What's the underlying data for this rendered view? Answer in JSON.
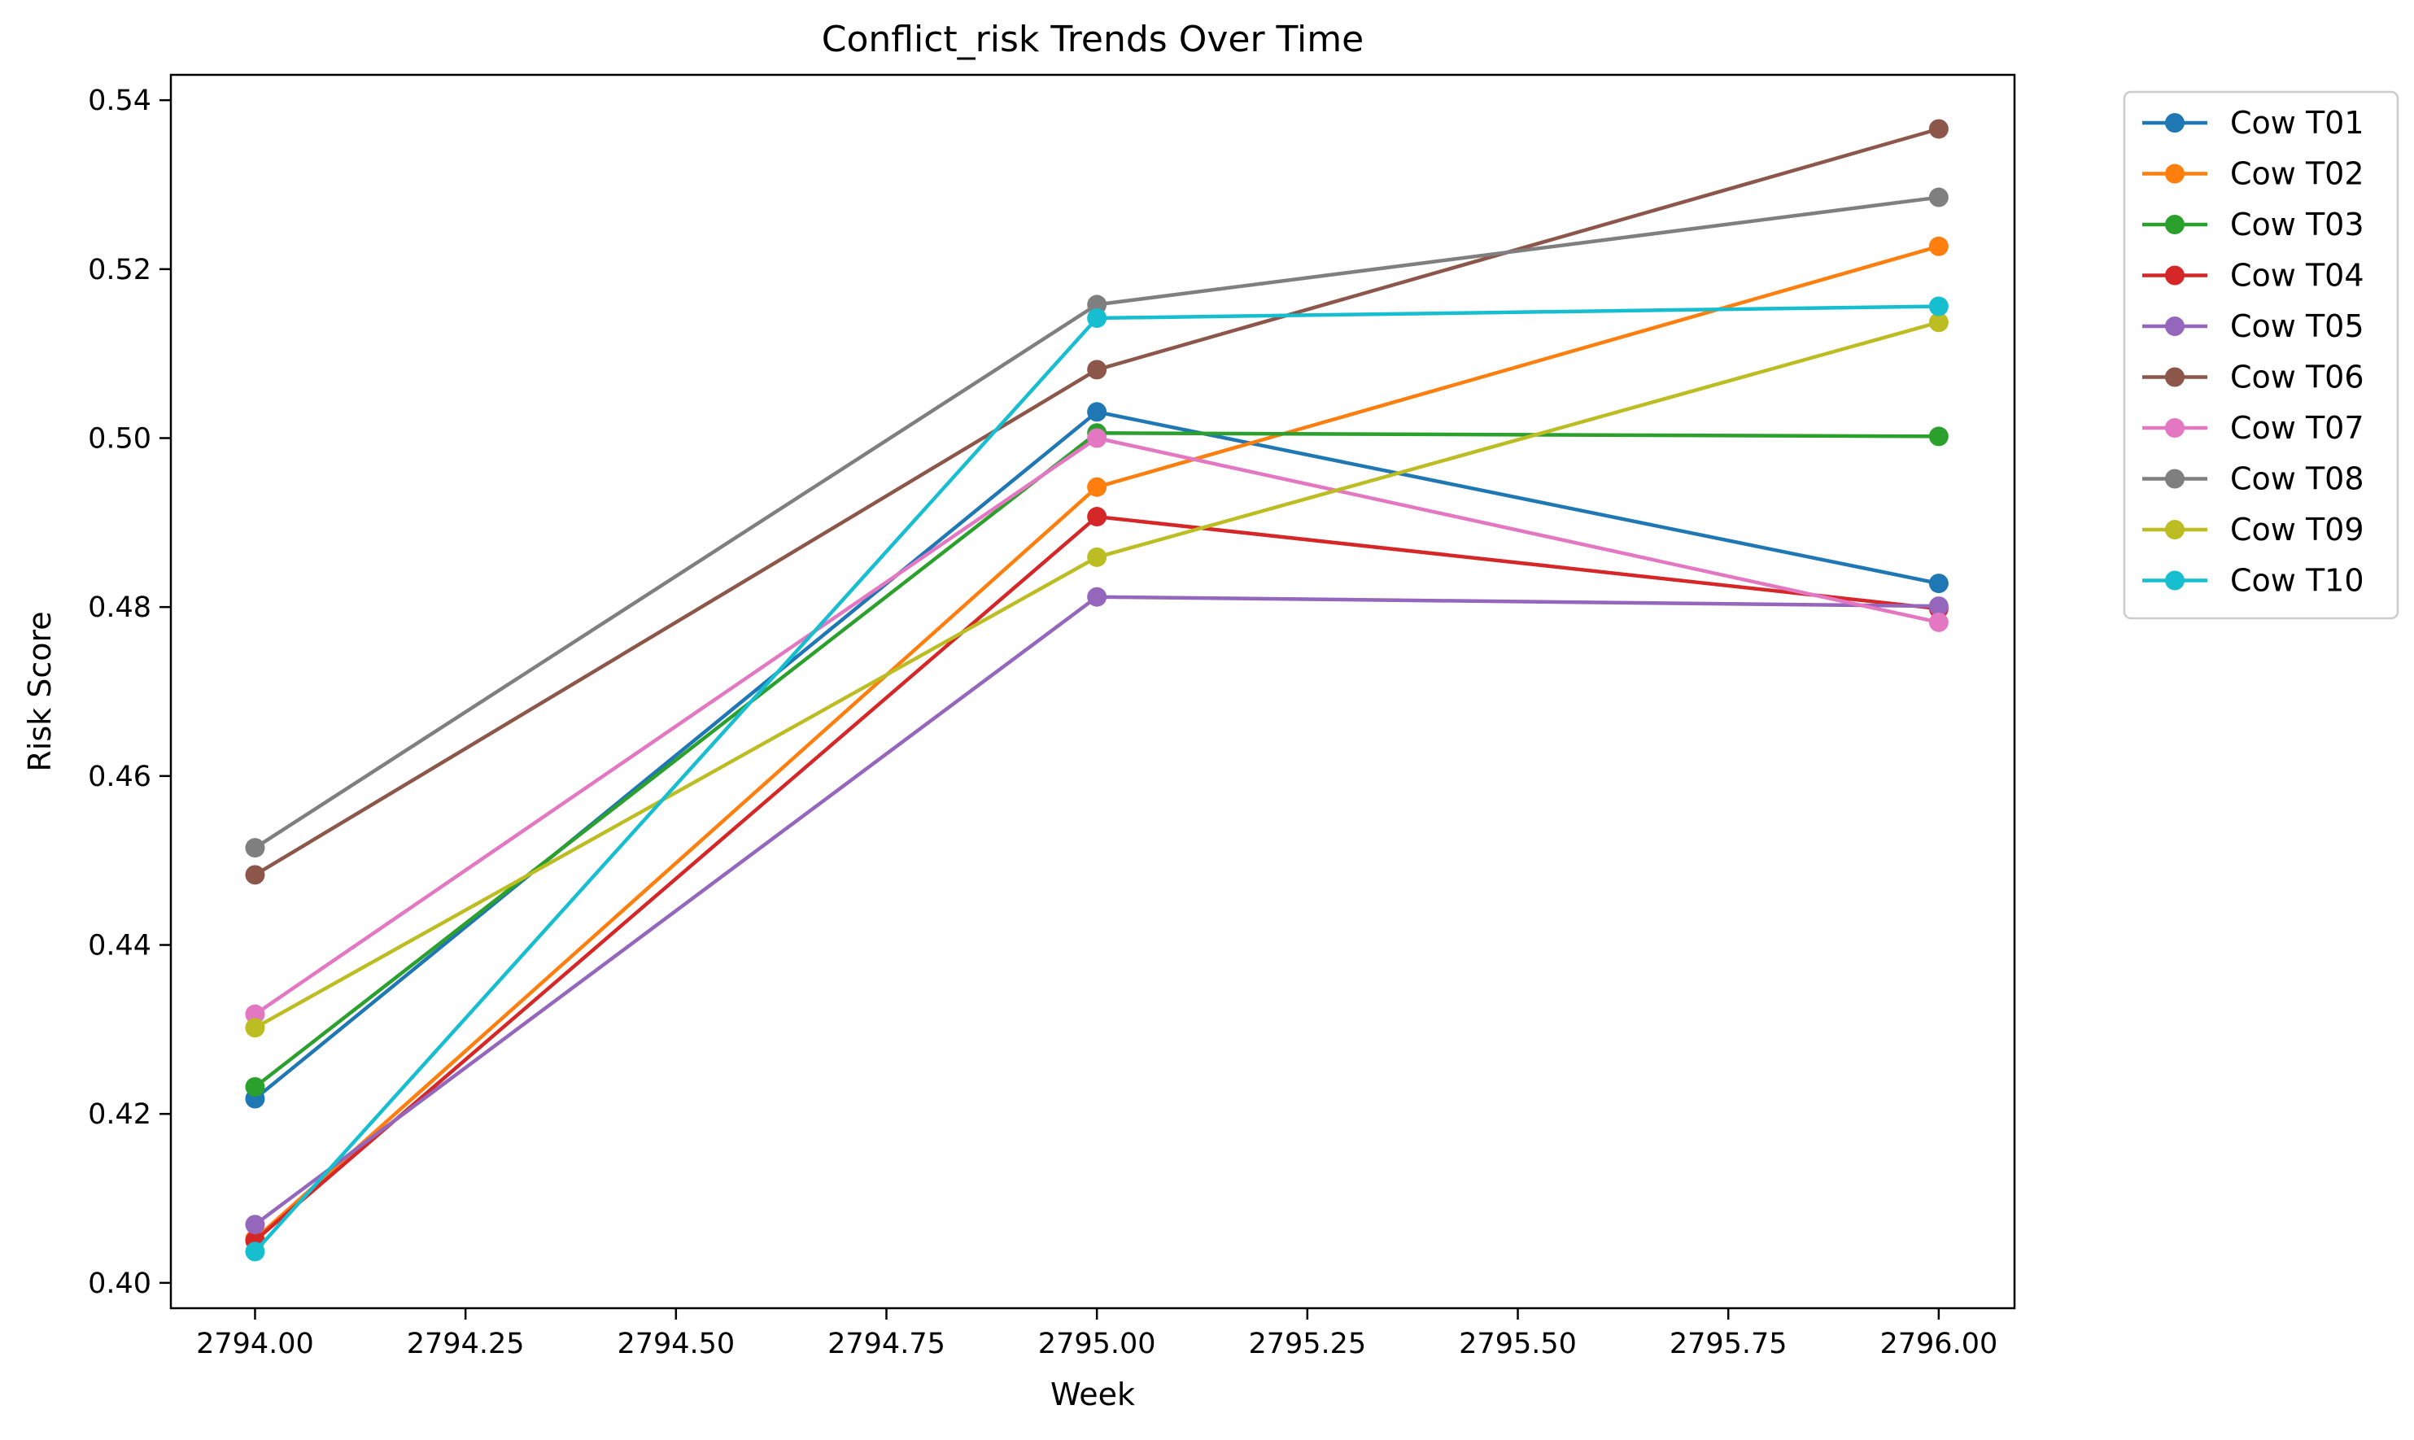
{
  "chart_data": {
    "type": "line",
    "title": "Conflict_risk Trends Over Time",
    "xlabel": "Week",
    "ylabel": "Risk Score",
    "xlim": [
      2793.9,
      2796.09
    ],
    "ylim": [
      0.397,
      0.543
    ],
    "xticks": [
      2794.0,
      2794.25,
      2794.5,
      2794.75,
      2795.0,
      2795.25,
      2795.5,
      2795.75,
      2796.0
    ],
    "xtick_labels": [
      "2794.00",
      "2794.25",
      "2794.50",
      "2794.75",
      "2795.00",
      "2795.25",
      "2795.50",
      "2795.75",
      "2796.00"
    ],
    "yticks": [
      0.4,
      0.42,
      0.44,
      0.46,
      0.48,
      0.5,
      0.52,
      0.54
    ],
    "ytick_labels": [
      "0.40",
      "0.42",
      "0.44",
      "0.46",
      "0.48",
      "0.50",
      "0.52",
      "0.54"
    ],
    "grid": false,
    "legend_position": "outside-right-top",
    "x": [
      2794,
      2795,
      2796
    ],
    "series": [
      {
        "name": "Cow T01",
        "color": "#1f77b4",
        "values": [
          0.4218,
          0.5031,
          0.4828
        ]
      },
      {
        "name": "Cow T02",
        "color": "#ff7f0e",
        "values": [
          0.4052,
          0.4942,
          0.5227
        ]
      },
      {
        "name": "Cow T03",
        "color": "#2ca02c",
        "values": [
          0.4232,
          0.5006,
          0.5002
        ]
      },
      {
        "name": "Cow T04",
        "color": "#d62728",
        "values": [
          0.405,
          0.4907,
          0.4798
        ]
      },
      {
        "name": "Cow T05",
        "color": "#9467bd",
        "values": [
          0.4069,
          0.4812,
          0.4801
        ]
      },
      {
        "name": "Cow T06",
        "color": "#8c564b",
        "values": [
          0.4483,
          0.5081,
          0.5366
        ]
      },
      {
        "name": "Cow T07",
        "color": "#e377c2",
        "values": [
          0.4318,
          0.5,
          0.4782
        ]
      },
      {
        "name": "Cow T08",
        "color": "#7f7f7f",
        "values": [
          0.4515,
          0.5158,
          0.5285
        ]
      },
      {
        "name": "Cow T09",
        "color": "#bcbd22",
        "values": [
          0.4302,
          0.4859,
          0.5137
        ]
      },
      {
        "name": "Cow T10",
        "color": "#17becf",
        "values": [
          0.4037,
          0.5142,
          0.5156
        ]
      }
    ]
  }
}
